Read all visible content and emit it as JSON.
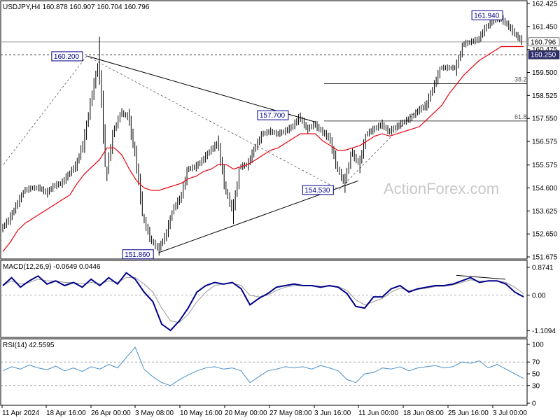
{
  "chart_data": [
    {
      "type": "candlestick",
      "title": "USDJPY,H4  160.878 160.907 160.704 160.796",
      "symbol": "USDJPY",
      "timeframe": "H4",
      "ohlc_readout": {
        "open": 160.878,
        "high": 160.907,
        "low": 160.704,
        "close": 160.796
      },
      "watermark": "ActionForex.com",
      "y_ticks": [
        "162.425",
        "161.450",
        "160.475",
        "159.500",
        "158.525",
        "157.550",
        "156.575",
        "155.575",
        "154.600",
        "153.625",
        "152.650",
        "151.675"
      ],
      "ylim": [
        151.675,
        162.425
      ],
      "x_ticks": [
        "11 Apr 2024",
        "18 Apr 16:00",
        "26 Apr 00:00",
        "3 May 08:00",
        "10 May 16:00",
        "20 May 00:00",
        "27 May 08:00",
        "3 Jun 16:00",
        "11 Jun 00:00",
        "18 Jun 08:00",
        "25 Jun 16:00",
        "3 Jul 00:00"
      ],
      "current_price": "160.796",
      "level_line": "160.250",
      "annotations": [
        {
          "text": "160.200",
          "x": "26 Apr 00:00",
          "y": 160.2
        },
        {
          "text": "151.860",
          "x": "3 May 08:00",
          "y": 151.86
        },
        {
          "text": "157.700",
          "x": "27 May 08:00",
          "y": 157.7
        },
        {
          "text": "154.530",
          "x": "3 Jun 16:00",
          "y": 154.53
        },
        {
          "text": "161.940",
          "x": "3 Jul 00:00",
          "y": 161.94
        }
      ],
      "fib_levels": [
        {
          "label": "38.2",
          "value": 159.02
        },
        {
          "label": "61.8",
          "value": 157.44
        }
      ],
      "series": [
        {
          "name": "",
          "type": "price",
          "color": "#000000",
          "points": [
            [
              "11 Apr 2024",
              152.9
            ],
            [
              "13 Apr",
              153.3
            ],
            [
              "15 Apr",
              153.9
            ],
            [
              "16 Apr",
              154.5
            ],
            [
              "17 Apr",
              154.6
            ],
            [
              "18 Apr 16:00",
              154.6
            ],
            [
              "19 Apr",
              154.4
            ],
            [
              "22 Apr",
              154.7
            ],
            [
              "23 Apr",
              154.8
            ],
            [
              "24 Apr",
              155.2
            ],
            [
              "25 Apr",
              155.6
            ],
            [
              "26 Apr 00:00",
              156.6
            ],
            [
              "26 Apr 12:00",
              158.4
            ],
            [
              "29 Apr",
              160.0
            ],
            [
              "29 Apr 08:00",
              155.2
            ],
            [
              "29 Apr 16:00",
              157.0
            ],
            [
              "30 Apr",
              157.8
            ],
            [
              "1 May",
              157.6
            ],
            [
              "1 May 12:00",
              155.8
            ],
            [
              "2 May",
              153.3
            ],
            [
              "2 May 12:00",
              152.4
            ],
            [
              "3 May 08:00",
              152.0
            ],
            [
              "3 May 16:00",
              152.6
            ],
            [
              "6 May",
              153.7
            ],
            [
              "7 May",
              154.2
            ],
            [
              "8 May",
              155.4
            ],
            [
              "9 May",
              155.5
            ],
            [
              "10 May 16:00",
              155.8
            ],
            [
              "13 May",
              156.2
            ],
            [
              "14 May",
              156.5
            ],
            [
              "15 May",
              154.6
            ],
            [
              "16 May",
              153.6
            ],
            [
              "17 May",
              155.5
            ],
            [
              "20 May 00:00",
              155.6
            ],
            [
              "21 May",
              156.3
            ],
            [
              "22 May",
              156.9
            ],
            [
              "23 May",
              157.0
            ],
            [
              "24 May",
              156.9
            ],
            [
              "27 May 08:00",
              157.0
            ],
            [
              "28 May",
              157.2
            ],
            [
              "29 May",
              157.6
            ],
            [
              "30 May",
              157.1
            ],
            [
              "31 May",
              157.3
            ],
            [
              "31 May 12:00",
              157.0
            ],
            [
              "3 Jun",
              156.7
            ],
            [
              "3 Jun 16:00",
              155.5
            ],
            [
              "4 Jun",
              154.8
            ],
            [
              "5 Jun",
              156.1
            ],
            [
              "6 Jun",
              155.6
            ],
            [
              "7 Jun",
              156.9
            ],
            [
              "10 Jun",
              157.1
            ],
            [
              "11 Jun 00:00",
              157.3
            ],
            [
              "12 Jun",
              157.0
            ],
            [
              "13 Jun",
              157.2
            ],
            [
              "14 Jun",
              157.4
            ],
            [
              "17 Jun",
              157.6
            ],
            [
              "18 Jun 08:00",
              157.9
            ],
            [
              "19 Jun",
              158.1
            ],
            [
              "20 Jun",
              158.9
            ],
            [
              "21 Jun",
              159.7
            ],
            [
              "24 Jun",
              159.7
            ],
            [
              "25 Jun 16:00",
              159.7
            ],
            [
              "26 Jun",
              160.7
            ],
            [
              "27 Jun",
              160.8
            ],
            [
              "28 Jun",
              160.9
            ],
            [
              "1 Jul",
              161.4
            ],
            [
              "2 Jul",
              161.7
            ],
            [
              "3 Jul 00:00",
              161.8
            ],
            [
              "3 Jul 12:00",
              161.5
            ],
            [
              "4 Jul",
              161.1
            ],
            [
              "4 Jul 12:00",
              160.8
            ]
          ]
        },
        {
          "name": "",
          "type": "moving-average",
          "color": "#e8000b",
          "points": [
            [
              "11 Apr 2024",
              151.9
            ],
            [
              "13 Apr",
              152.3
            ],
            [
              "15 Apr",
              152.8
            ],
            [
              "16 Apr",
              153.1
            ],
            [
              "17 Apr",
              153.3
            ],
            [
              "18 Apr 16:00",
              153.5
            ],
            [
              "19 Apr",
              153.7
            ],
            [
              "22 Apr",
              153.9
            ],
            [
              "23 Apr",
              154.1
            ],
            [
              "24 Apr",
              154.3
            ],
            [
              "25 Apr",
              154.8
            ],
            [
              "26 Apr 00:00",
              155.2
            ],
            [
              "26 Apr 12:00",
              155.5
            ],
            [
              "29 Apr",
              155.8
            ],
            [
              "29 Apr 08:00",
              156.3
            ],
            [
              "29 Apr 16:00",
              156.3
            ],
            [
              "30 Apr",
              156.0
            ],
            [
              "1 May",
              155.4
            ],
            [
              "1 May 12:00",
              154.9
            ],
            [
              "2 May",
              154.6
            ],
            [
              "2 May 12:00",
              154.5
            ],
            [
              "3 May 08:00",
              154.5
            ],
            [
              "3 May 16:00",
              154.6
            ],
            [
              "6 May",
              154.7
            ],
            [
              "7 May",
              154.8
            ],
            [
              "8 May",
              155.0
            ],
            [
              "9 May",
              155.1
            ],
            [
              "10 May 16:00",
              155.3
            ],
            [
              "13 May",
              155.4
            ],
            [
              "14 May",
              155.6
            ],
            [
              "15 May",
              155.6
            ],
            [
              "16 May",
              155.4
            ],
            [
              "17 May",
              155.5
            ],
            [
              "20 May 00:00",
              155.6
            ],
            [
              "21 May",
              155.8
            ],
            [
              "22 May",
              156.0
            ],
            [
              "23 May",
              156.2
            ],
            [
              "24 May",
              156.3
            ],
            [
              "27 May 08:00",
              156.5
            ],
            [
              "28 May",
              156.7
            ],
            [
              "29 May",
              156.9
            ],
            [
              "30 May",
              156.9
            ],
            [
              "31 May",
              156.9
            ],
            [
              "31 May 12:00",
              156.6
            ],
            [
              "3 Jun",
              156.4
            ],
            [
              "3 Jun 16:00",
              156.2
            ],
            [
              "4 Jun",
              156.2
            ],
            [
              "5 Jun",
              156.3
            ],
            [
              "6 Jun",
              156.4
            ],
            [
              "7 Jun",
              156.6
            ],
            [
              "10 Jun",
              156.8
            ],
            [
              "11 Jun 00:00",
              156.9
            ],
            [
              "12 Jun",
              156.8
            ],
            [
              "13 Jun",
              156.9
            ],
            [
              "14 Jun",
              157.0
            ],
            [
              "17 Jun",
              157.1
            ],
            [
              "18 Jun 08:00",
              157.2
            ],
            [
              "19 Jun",
              157.5
            ],
            [
              "20 Jun",
              157.8
            ],
            [
              "21 Jun",
              158.1
            ],
            [
              "24 Jun",
              158.6
            ],
            [
              "25 Jun 16:00",
              159.0
            ],
            [
              "26 Jun",
              159.4
            ],
            [
              "27 Jun",
              159.7
            ],
            [
              "28 Jun",
              160.0
            ],
            [
              "1 Jul",
              160.2
            ],
            [
              "2 Jul",
              160.4
            ],
            [
              "3 Jul 00:00",
              160.6
            ],
            [
              "3 Jul 12:00",
              160.6
            ],
            [
              "4 Jul",
              160.6
            ],
            [
              "4 Jul 12:00",
              160.6
            ]
          ]
        }
      ]
    },
    {
      "type": "line",
      "title": "MACD(12,26,9) -0.0649 0.0446",
      "y_ticks": [
        "0.8741",
        "0.00",
        "-1.1094"
      ],
      "ylim": [
        -1.25,
        1.0
      ],
      "series": [
        {
          "name": "",
          "color": "#00008b",
          "values": [
            0.3,
            0.55,
            0.25,
            0.45,
            0.6,
            0.35,
            0.45,
            0.3,
            0.4,
            0.25,
            0.5,
            0.3,
            0.55,
            0.35,
            0.7,
            0.5,
            0.1,
            -0.2,
            -0.9,
            -1.1,
            -0.8,
            -0.4,
            0.1,
            0.3,
            0.4,
            0.35,
            0.4,
            0.2,
            -0.3,
            -0.1,
            0.05,
            0.25,
            0.3,
            0.35,
            0.3,
            0.3,
            0.25,
            0.3,
            0.25,
            0.05,
            -0.35,
            -0.4,
            -0.05,
            -0.05,
            0.2,
            0.3,
            0.1,
            0.2,
            0.25,
            0.3,
            0.3,
            0.35,
            0.45,
            0.55,
            0.4,
            0.45,
            0.45,
            0.35,
            0.1,
            -0.05
          ]
        },
        {
          "name": "",
          "color": "#999999",
          "values": [
            0.3,
            0.45,
            0.35,
            0.4,
            0.5,
            0.45,
            0.45,
            0.4,
            0.4,
            0.35,
            0.4,
            0.35,
            0.45,
            0.4,
            0.55,
            0.55,
            0.35,
            0.1,
            -0.4,
            -0.8,
            -0.85,
            -0.6,
            -0.2,
            0.1,
            0.3,
            0.35,
            0.38,
            0.3,
            0.0,
            -0.05,
            0.0,
            0.15,
            0.25,
            0.3,
            0.3,
            0.3,
            0.28,
            0.28,
            0.27,
            0.15,
            -0.15,
            -0.3,
            -0.2,
            -0.1,
            0.1,
            0.22,
            0.15,
            0.18,
            0.22,
            0.27,
            0.28,
            0.32,
            0.4,
            0.48,
            0.44,
            0.45,
            0.45,
            0.4,
            0.25,
            0.04
          ]
        }
      ]
    },
    {
      "type": "line",
      "title": "RSI(14) 42.5595",
      "y_ticks": [
        "100",
        "70",
        "50",
        "30",
        "0"
      ],
      "ylim": [
        0,
        100
      ],
      "series": [
        {
          "name": "",
          "color": "#4a90c8",
          "values": [
            55,
            62,
            58,
            65,
            60,
            57,
            63,
            55,
            60,
            54,
            62,
            58,
            66,
            60,
            78,
            95,
            58,
            45,
            35,
            30,
            40,
            48,
            55,
            60,
            62,
            58,
            60,
            55,
            35,
            45,
            55,
            58,
            62,
            60,
            62,
            58,
            64,
            60,
            55,
            40,
            35,
            50,
            52,
            60,
            58,
            62,
            55,
            60,
            62,
            64,
            60,
            62,
            70,
            68,
            72,
            60,
            66,
            58,
            50,
            42
          ]
        }
      ]
    }
  ]
}
